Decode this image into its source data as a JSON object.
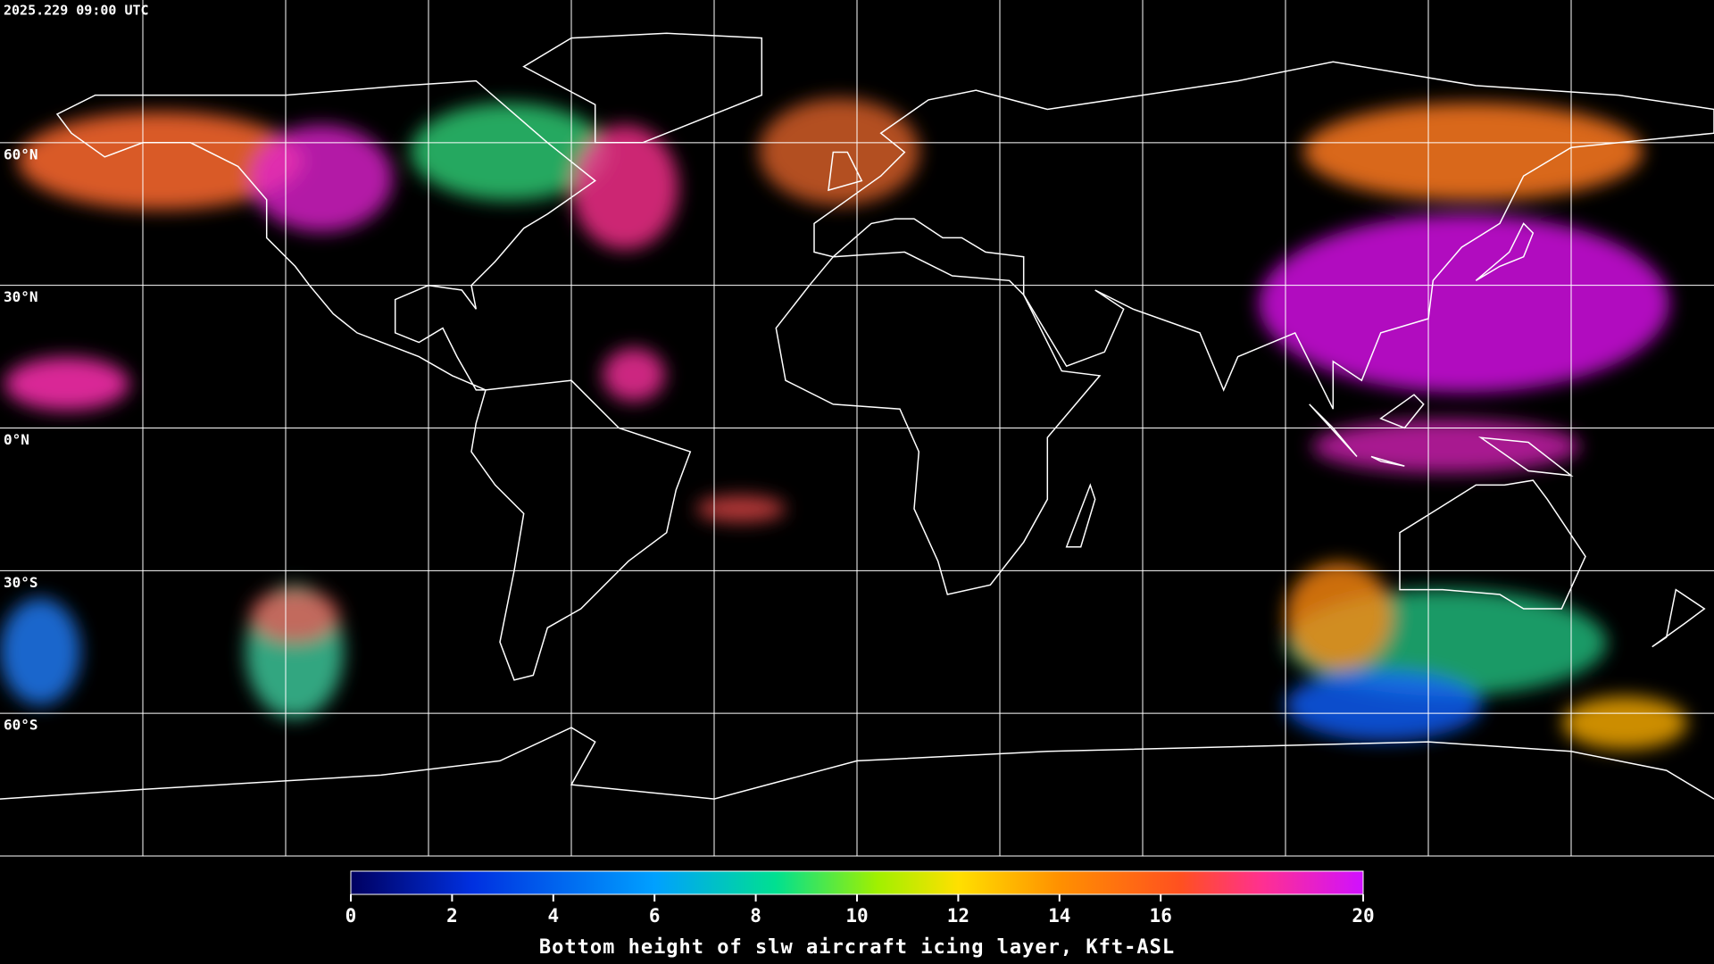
{
  "map": {
    "timestamp": "2025.229 09:00 UTC",
    "xlim": [
      -180,
      180
    ],
    "ylim": [
      -90,
      90
    ],
    "xticks": [
      -150,
      -120,
      -90,
      -60,
      -30,
      0,
      30,
      60,
      90,
      120,
      150
    ],
    "yticks": [
      {
        "value": 60,
        "label": "60°N"
      },
      {
        "value": 30,
        "label": "30°N"
      },
      {
        "value": 0,
        "label": "0°N"
      },
      {
        "value": -30,
        "label": "30°S"
      },
      {
        "value": -60,
        "label": "60°S"
      }
    ]
  },
  "colorbar": {
    "title": "Bottom height of slw aircraft icing layer, Kft-ASL",
    "lim": [
      0,
      20
    ],
    "ticks": [
      0,
      2,
      4,
      6,
      8,
      10,
      12,
      14,
      16,
      20
    ]
  }
}
